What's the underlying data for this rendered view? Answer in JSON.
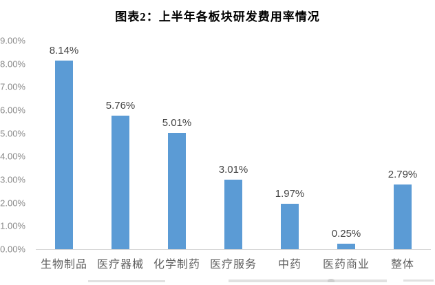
{
  "chart_data": {
    "type": "bar",
    "title": "图表2：上半年各板块研发费用率情况",
    "categories": [
      "生物制品",
      "医疗器械",
      "化学制药",
      "医疗服务",
      "中药",
      "医药商业",
      "整体"
    ],
    "values": [
      8.14,
      5.76,
      5.01,
      3.01,
      1.97,
      0.25,
      2.79
    ],
    "data_labels": [
      "8.14%",
      "5.76%",
      "5.01%",
      "3.01%",
      "1.97%",
      "0.25%",
      "2.79%"
    ],
    "y_tick_labels": [
      "9.00%",
      "8.00%",
      "7.00%",
      "6.00%",
      "5.00%",
      "4.00%",
      "3.00%",
      "2.00%",
      "1.00%",
      "0.00%"
    ],
    "ylim": [
      0,
      9
    ],
    "y_tick_step": 1,
    "xlabel": "",
    "ylabel": "",
    "grid": false,
    "legend": "none",
    "bar_color": "#5B9BD5"
  },
  "colors": {
    "bar": "#5B9BD5",
    "axis_line": "#d6d6d6",
    "tick_label": "#8a8a8a",
    "category_label": "#5e5e5e",
    "data_label": "#444444",
    "title": "#000000",
    "background": "#ffffff"
  }
}
